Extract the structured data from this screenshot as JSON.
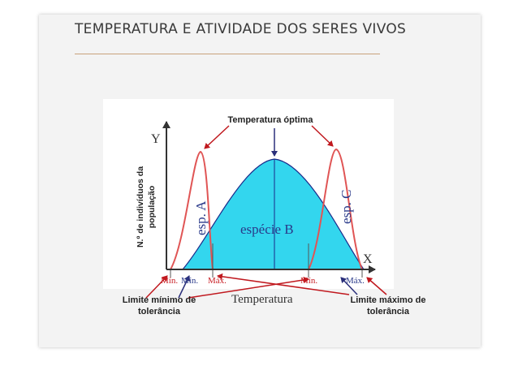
{
  "title": "TEMPERATURA E ATIVIDADE DOS SERES VIVOS",
  "labels": {
    "optimal": "Temperatura óptima",
    "ylabel_line1": "N.º de indivíduos da",
    "ylabel_line2": "população",
    "min_limit_line1": "Limite mínimo de",
    "min_limit_line2": "tolerância",
    "max_limit_line1": "Limite máximo de",
    "max_limit_line2": "tolerância"
  },
  "graph": {
    "y_axis": "Y",
    "x_axis": "X",
    "x_label": "Temperatura",
    "species_a": "esp. A",
    "species_b": "espécie B",
    "species_c": "esp. C",
    "min_a": "Mín.",
    "min_b": "Mín.",
    "max_a": "Máx.",
    "min_c": "Mín.",
    "max_b": "Máx."
  },
  "colors": {
    "species_b_fill": "#33d6ee",
    "red_curve": "#e05555",
    "arrow_red": "#c0181e",
    "arrow_blue": "#2a2f7a",
    "axis_label_red": "#c81e24"
  }
}
